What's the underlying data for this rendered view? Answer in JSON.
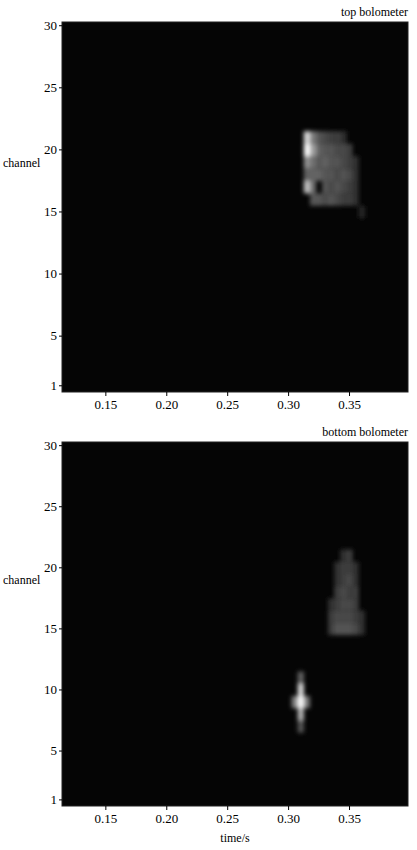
{
  "chart_data": [
    {
      "type": "heatmap",
      "title": "top bolometer",
      "y_label": "channel",
      "xlim": [
        0.114,
        0.398
      ],
      "xticks": [
        {
          "value": 0.15,
          "label": "0.15"
        },
        {
          "value": 0.2,
          "label": "0.20"
        },
        {
          "value": 0.25,
          "label": "0.25"
        },
        {
          "value": 0.3,
          "label": "0.30"
        },
        {
          "value": 0.35,
          "label": "0.35"
        }
      ],
      "ylim": [
        0.5,
        30.3
      ],
      "yticks": [
        1,
        5,
        10,
        15,
        20,
        25,
        30
      ],
      "dt": 0.005,
      "zlim": [
        0,
        1
      ],
      "cells": [
        [
          0.315,
          21,
          0.85
        ],
        [
          0.315,
          20,
          1
        ],
        [
          0.315,
          19,
          0.55
        ],
        [
          0.32,
          20,
          0.6
        ],
        [
          0.32,
          21,
          0.45
        ],
        [
          0.315,
          18,
          0.35
        ],
        [
          0.315,
          17,
          0.75
        ],
        [
          0.32,
          17,
          0.4
        ],
        [
          0.32,
          16,
          0.3
        ],
        [
          0.32,
          18,
          0.35
        ],
        [
          0.32,
          19,
          0.4
        ],
        [
          0.325,
          16,
          0.3
        ],
        [
          0.325,
          18,
          0.35
        ],
        [
          0.325,
          19,
          0.3
        ],
        [
          0.325,
          20,
          0.35
        ],
        [
          0.325,
          21,
          0.3
        ],
        [
          0.33,
          16,
          0.25
        ],
        [
          0.33,
          17,
          0.3
        ],
        [
          0.33,
          18,
          0.3
        ],
        [
          0.33,
          19,
          0.35
        ],
        [
          0.33,
          20,
          0.3
        ],
        [
          0.33,
          21,
          0.25
        ],
        [
          0.335,
          16,
          0.3
        ],
        [
          0.335,
          17,
          0.25
        ],
        [
          0.335,
          18,
          0.3
        ],
        [
          0.335,
          19,
          0.3
        ],
        [
          0.335,
          20,
          0.3
        ],
        [
          0.335,
          21,
          0.2
        ],
        [
          0.34,
          16,
          0.25
        ],
        [
          0.34,
          17,
          0.3
        ],
        [
          0.34,
          18,
          0.25
        ],
        [
          0.34,
          19,
          0.3
        ],
        [
          0.34,
          20,
          0.25
        ],
        [
          0.34,
          21,
          0.2
        ],
        [
          0.345,
          16,
          0.2
        ],
        [
          0.345,
          17,
          0.25
        ],
        [
          0.345,
          18,
          0.3
        ],
        [
          0.345,
          19,
          0.25
        ],
        [
          0.345,
          20,
          0.25
        ],
        [
          0.345,
          21,
          0.15
        ],
        [
          0.35,
          16,
          0.2
        ],
        [
          0.35,
          17,
          0.2
        ],
        [
          0.35,
          18,
          0.25
        ],
        [
          0.35,
          19,
          0.2
        ],
        [
          0.35,
          20,
          0.2
        ],
        [
          0.355,
          16,
          0.15
        ],
        [
          0.355,
          17,
          0.15
        ],
        [
          0.355,
          18,
          0.15
        ],
        [
          0.355,
          19,
          0.15
        ],
        [
          0.36,
          15,
          0.1
        ]
      ]
    },
    {
      "type": "heatmap",
      "title": "bottom bolometer",
      "y_label": "channel",
      "x_label": "time/s",
      "xlim": [
        0.114,
        0.398
      ],
      "xticks": [
        {
          "value": 0.15,
          "label": "0.15"
        },
        {
          "value": 0.2,
          "label": "0.20"
        },
        {
          "value": 0.25,
          "label": "0.25"
        },
        {
          "value": 0.3,
          "label": "0.30"
        },
        {
          "value": 0.35,
          "label": "0.35"
        }
      ],
      "ylim": [
        0.5,
        30.3
      ],
      "yticks": [
        1,
        5,
        10,
        15,
        20,
        25,
        30
      ],
      "dt": 0.005,
      "zlim": [
        0,
        1
      ],
      "cells": [
        [
          0.31,
          8,
          0.7
        ],
        [
          0.31,
          9,
          1
        ],
        [
          0.31,
          10,
          0.85
        ],
        [
          0.305,
          9,
          0.5
        ],
        [
          0.315,
          9,
          0.45
        ],
        [
          0.31,
          7,
          0.3
        ],
        [
          0.31,
          11,
          0.35
        ],
        [
          0.335,
          15,
          0.2
        ],
        [
          0.335,
          16,
          0.2
        ],
        [
          0.335,
          17,
          0.15
        ],
        [
          0.34,
          15,
          0.3
        ],
        [
          0.34,
          16,
          0.25
        ],
        [
          0.34,
          17,
          0.2
        ],
        [
          0.34,
          18,
          0.2
        ],
        [
          0.34,
          19,
          0.15
        ],
        [
          0.34,
          20,
          0.15
        ],
        [
          0.345,
          15,
          0.3
        ],
        [
          0.345,
          16,
          0.25
        ],
        [
          0.345,
          17,
          0.25
        ],
        [
          0.345,
          18,
          0.25
        ],
        [
          0.345,
          19,
          0.2
        ],
        [
          0.345,
          20,
          0.2
        ],
        [
          0.345,
          21,
          0.15
        ],
        [
          0.35,
          15,
          0.3
        ],
        [
          0.35,
          16,
          0.25
        ],
        [
          0.35,
          17,
          0.25
        ],
        [
          0.35,
          18,
          0.2
        ],
        [
          0.35,
          19,
          0.25
        ],
        [
          0.35,
          20,
          0.2
        ],
        [
          0.35,
          21,
          0.2
        ],
        [
          0.355,
          15,
          0.25
        ],
        [
          0.355,
          16,
          0.2
        ],
        [
          0.355,
          17,
          0.2
        ],
        [
          0.355,
          18,
          0.2
        ],
        [
          0.355,
          19,
          0.15
        ],
        [
          0.355,
          20,
          0.15
        ],
        [
          0.36,
          15,
          0.15
        ],
        [
          0.36,
          16,
          0.15
        ]
      ]
    }
  ]
}
